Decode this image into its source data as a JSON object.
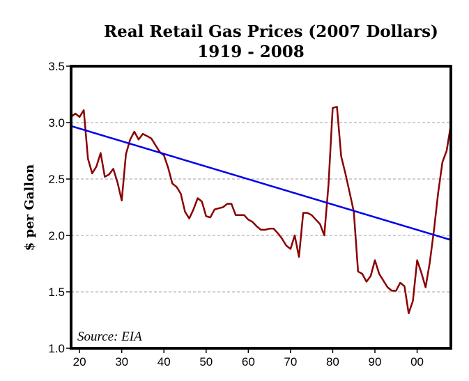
{
  "chart_data": {
    "type": "line",
    "title": "Real Retail Gas Prices (2007 Dollars)",
    "subtitle": "1919 - 2008",
    "ylabel": "$ per Gallon",
    "xlabel": "",
    "source_note": "Source: EIA",
    "xlim": [
      1918,
      2008
    ],
    "ylim": [
      1.0,
      3.5
    ],
    "y_ticks": [
      1.0,
      1.5,
      2.0,
      2.5,
      3.0,
      3.5
    ],
    "y_tick_labels": [
      "1.0",
      "1.5",
      "2.0",
      "2.5",
      "3.0",
      "3.5"
    ],
    "x_ticks": [
      1920,
      1930,
      1940,
      1950,
      1960,
      1970,
      1980,
      1990,
      2000
    ],
    "x_tick_labels": [
      "20",
      "30",
      "40",
      "50",
      "60",
      "70",
      "80",
      "90",
      "00"
    ],
    "grid": {
      "horizontal": true,
      "style": "dashed"
    },
    "series": [
      {
        "color": "#8b0000",
        "x": [
          1918,
          1919,
          1920,
          1921,
          1922,
          1923,
          1924,
          1925,
          1926,
          1927,
          1928,
          1929,
          1930,
          1931,
          1932,
          1933,
          1934,
          1935,
          1936,
          1937,
          1938,
          1939,
          1940,
          1941,
          1942,
          1943,
          1944,
          1945,
          1946,
          1947,
          1948,
          1949,
          1950,
          1951,
          1952,
          1953,
          1954,
          1955,
          1956,
          1957,
          1958,
          1959,
          1960,
          1961,
          1962,
          1963,
          1964,
          1965,
          1966,
          1967,
          1968,
          1969,
          1970,
          1971,
          1972,
          1973,
          1974,
          1975,
          1976,
          1977,
          1978,
          1979,
          1980,
          1981,
          1982,
          1983,
          1984,
          1985,
          1986,
          1987,
          1988,
          1989,
          1990,
          1991,
          1992,
          1993,
          1994,
          1995,
          1996,
          1997,
          1998,
          1999,
          2000,
          2001,
          2002,
          2003,
          2004,
          2005,
          2006,
          2007,
          2008
        ],
        "values": [
          3.05,
          3.08,
          3.05,
          3.11,
          2.68,
          2.55,
          2.61,
          2.73,
          2.52,
          2.54,
          2.59,
          2.47,
          2.31,
          2.72,
          2.85,
          2.92,
          2.85,
          2.9,
          2.88,
          2.86,
          2.8,
          2.74,
          2.71,
          2.6,
          2.46,
          2.43,
          2.37,
          2.21,
          2.15,
          2.23,
          2.33,
          2.3,
          2.17,
          2.16,
          2.23,
          2.24,
          2.25,
          2.28,
          2.28,
          2.18,
          2.18,
          2.18,
          2.14,
          2.12,
          2.08,
          2.05,
          2.05,
          2.06,
          2.06,
          2.02,
          1.97,
          1.91,
          1.88,
          2.0,
          1.81,
          2.2,
          2.2,
          2.18,
          2.14,
          2.1,
          2.0,
          2.45,
          3.13,
          3.14,
          2.7,
          2.55,
          2.38,
          2.21,
          1.68,
          1.66,
          1.59,
          1.64,
          1.78,
          1.66,
          1.6,
          1.54,
          1.51,
          1.51,
          1.58,
          1.55,
          1.31,
          1.42,
          1.78,
          1.67,
          1.54,
          1.76,
          2.05,
          2.38,
          2.65,
          2.75,
          2.98
        ]
      },
      {
        "color": "#0000ee",
        "x": [
          1918,
          2008
        ],
        "values": [
          2.97,
          1.96
        ]
      }
    ]
  }
}
